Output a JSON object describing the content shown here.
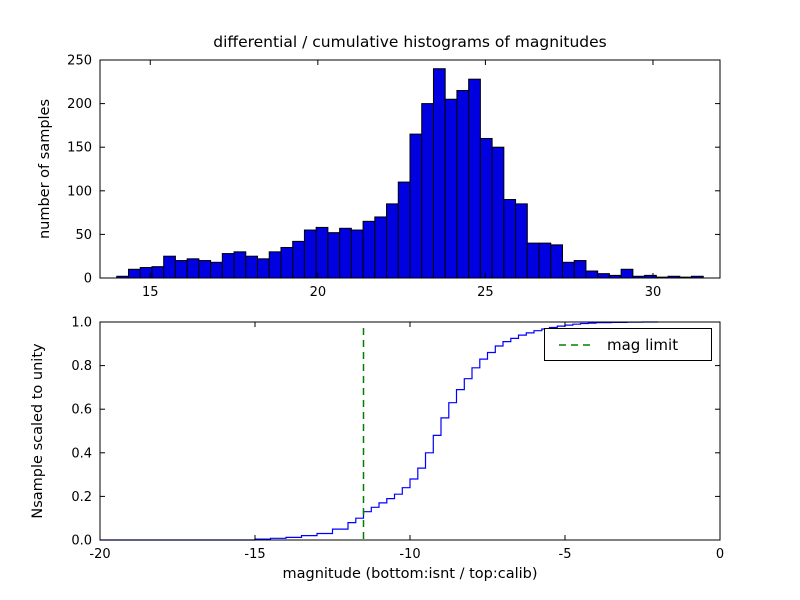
{
  "figure": {
    "title": "differential / cumulative histograms of magnitudes"
  },
  "chart_data": [
    {
      "type": "bar",
      "role": "differential-histogram-top",
      "ylabel": "number of samples",
      "xlim": [
        13.5,
        32.0
      ],
      "ylim": [
        0,
        250
      ],
      "xticks": [
        15,
        20,
        25,
        30
      ],
      "xtick_labels": [
        "15",
        "20",
        "25",
        "30"
      ],
      "yticks": [
        0,
        50,
        100,
        150,
        200,
        250
      ],
      "ytick_labels": [
        "0",
        "50",
        "100",
        "150",
        "200",
        "250"
      ],
      "bin_start": 14.0,
      "bin_width": 0.35,
      "values": [
        2,
        10,
        12,
        13,
        25,
        20,
        22,
        20,
        18,
        28,
        30,
        25,
        22,
        30,
        35,
        42,
        55,
        58,
        52,
        57,
        55,
        65,
        70,
        85,
        110,
        165,
        200,
        240,
        205,
        215,
        228,
        160,
        150,
        90,
        85,
        40,
        40,
        38,
        18,
        20,
        8,
        5,
        3,
        10,
        2,
        3,
        1,
        2,
        1,
        2
      ],
      "colors": {
        "bar_fill": "#0000e0",
        "bar_edge": "#000000"
      }
    },
    {
      "type": "line",
      "role": "cumulative-histogram-bottom",
      "ylabel": "Nsample scaled to unity",
      "xlabel": "magnitude (bottom:isnt / top:calib)",
      "xlim": [
        -20,
        0
      ],
      "ylim": [
        0,
        1
      ],
      "xticks": [
        -20,
        -15,
        -10,
        -5,
        0
      ],
      "xtick_labels": [
        "-20",
        "-15",
        "-10",
        "-5",
        "0"
      ],
      "yticks": [
        0,
        0.2,
        0.4,
        0.6,
        0.8,
        1.0
      ],
      "ytick_labels": [
        "0.0",
        "0.2",
        "0.4",
        "0.6",
        "0.8",
        "1.0"
      ],
      "step_points": [
        [
          -20,
          0
        ],
        [
          -15.5,
          0
        ],
        [
          -15,
          0.004
        ],
        [
          -14.5,
          0.008
        ],
        [
          -14,
          0.012
        ],
        [
          -13.5,
          0.02
        ],
        [
          -13,
          0.03
        ],
        [
          -12.5,
          0.05
        ],
        [
          -12,
          0.08
        ],
        [
          -11.75,
          0.1
        ],
        [
          -11.5,
          0.13
        ],
        [
          -11.25,
          0.15
        ],
        [
          -11,
          0.17
        ],
        [
          -10.75,
          0.19
        ],
        [
          -10.5,
          0.21
        ],
        [
          -10.25,
          0.24
        ],
        [
          -10,
          0.28
        ],
        [
          -9.75,
          0.33
        ],
        [
          -9.5,
          0.4
        ],
        [
          -9.25,
          0.48
        ],
        [
          -9,
          0.56
        ],
        [
          -8.75,
          0.63
        ],
        [
          -8.5,
          0.69
        ],
        [
          -8.25,
          0.74
        ],
        [
          -8,
          0.79
        ],
        [
          -7.75,
          0.83
        ],
        [
          -7.5,
          0.86
        ],
        [
          -7.25,
          0.89
        ],
        [
          -7,
          0.91
        ],
        [
          -6.75,
          0.925
        ],
        [
          -6.5,
          0.94
        ],
        [
          -6.25,
          0.95
        ],
        [
          -6,
          0.96
        ],
        [
          -5.75,
          0.968
        ],
        [
          -5.5,
          0.975
        ],
        [
          -5.25,
          0.981
        ],
        [
          -5,
          0.986
        ],
        [
          -4.75,
          0.99
        ],
        [
          -4.5,
          0.993
        ],
        [
          -4.25,
          0.995
        ],
        [
          -4,
          0.997
        ],
        [
          -3.5,
          0.998
        ],
        [
          -3,
          0.999
        ],
        [
          -2.5,
          1.0
        ],
        [
          -2,
          1.0
        ]
      ],
      "mag_limit_x": -11.5,
      "legend_label": "mag limit",
      "legend_position": "upper right",
      "colors": {
        "line": "#0000ff",
        "limit": "#008000"
      }
    }
  ]
}
